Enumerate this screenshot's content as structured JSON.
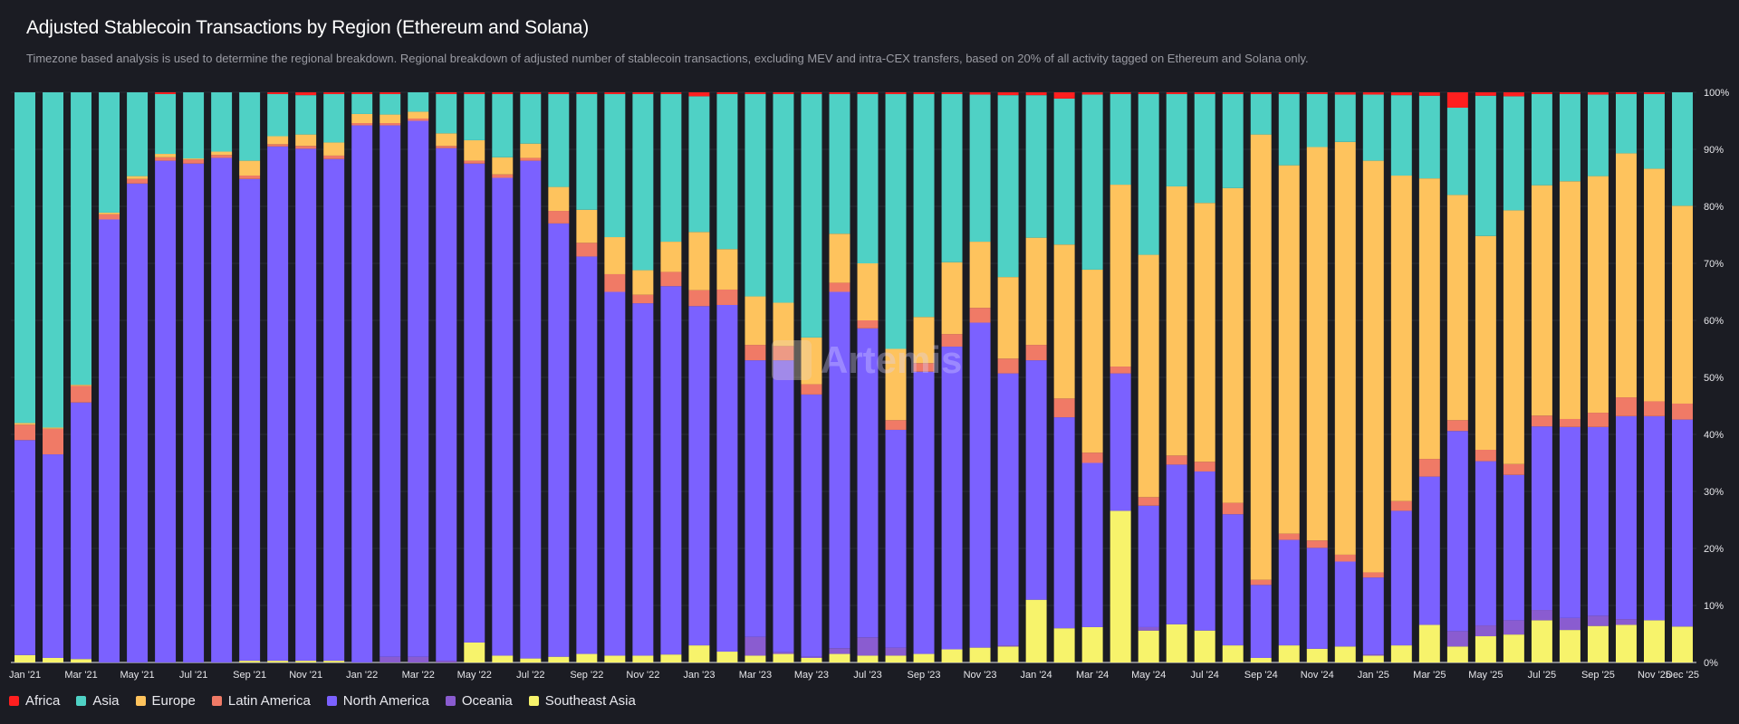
{
  "title": "Adjusted Stablecoin Transactions by Region (Ethereum and Solana)",
  "subtitle": "Timezone based analysis is used to determine the regional breakdown. Regional breakdown of adjusted number of stablecoin transactions, excluding MEV and intra-CEX transfers, based on 20% of all activity tagged on Ethereum and Solana only.",
  "watermark": "Artemis",
  "chart_data": {
    "type": "bar",
    "stacked": true,
    "normalized": true,
    "ylim": [
      0,
      100
    ],
    "y_ticks": [
      "0%",
      "10%",
      "20%",
      "30%",
      "40%",
      "50%",
      "60%",
      "70%",
      "80%",
      "90%",
      "100%"
    ],
    "y_axis_side": "right",
    "grid": true,
    "legend_position": "bottom-left",
    "categories": [
      "Jan '21",
      "Feb '21",
      "Mar '21",
      "Apr '21",
      "May '21",
      "Jun '21",
      "Jul '21",
      "Aug '21",
      "Sep '21",
      "Oct '21",
      "Nov '21",
      "Dec '21",
      "Jan '22",
      "Feb '22",
      "Mar '22",
      "Apr '22",
      "May '22",
      "Jun '22",
      "Jul '22",
      "Aug '22",
      "Sep '22",
      "Oct '22",
      "Nov '22",
      "Dec '22",
      "Jan '23",
      "Feb '23",
      "Mar '23",
      "Apr '23",
      "May '23",
      "Jun '23",
      "Jul '23",
      "Aug '23",
      "Sep '23",
      "Oct '23",
      "Nov '23",
      "Dec '23",
      "Jan '24",
      "Feb '24",
      "Mar '24",
      "Apr '24",
      "May '24",
      "Jun '24",
      "Jul '24",
      "Aug '24",
      "Sep '24",
      "Oct '24",
      "Nov '24",
      "Dec '24",
      "Jan '25",
      "Feb '25",
      "Mar '25",
      "Apr '25",
      "May '25",
      "Jun '25",
      "Jul '25",
      "Aug '25",
      "Sep '25",
      "Oct '25",
      "Nov '25",
      "Dec '25"
    ],
    "x_tick_labels": [
      "Jan '21",
      "Mar '21",
      "May '21",
      "Jul '21",
      "Sep '21",
      "Nov '21",
      "Jan '22",
      "Mar '22",
      "May '22",
      "Jul '22",
      "Sep '22",
      "Nov '22",
      "Jan '23",
      "Mar '23",
      "May '23",
      "Jul '23",
      "Sep '23",
      "Nov '23",
      "Jan '24",
      "Mar '24",
      "May '24",
      "Jul '24",
      "Sep '24",
      "Nov '24",
      "Jan '25",
      "Mar '25",
      "May '25",
      "Jul '25",
      "Sep '25",
      "Nov '25",
      "Dec '25"
    ],
    "legend": [
      "Africa",
      "Asia",
      "Europe",
      "Latin America",
      "North America",
      "Oceania",
      "Southeast Asia"
    ],
    "series": [
      {
        "name": "Southeast Asia",
        "color": "#f7f36b",
        "values": [
          1.3,
          0.8,
          0.6,
          0,
          0,
          0,
          0,
          0,
          0.3,
          0.3,
          0.3,
          0.3,
          0,
          0,
          0,
          0,
          3.5,
          1.2,
          0.7,
          1,
          1.5,
          1.2,
          1.2,
          1.4,
          3,
          1.9,
          1.2,
          1.5,
          0.8,
          1.5,
          1.2,
          1.2,
          1.5,
          2.3,
          2.6,
          2.8,
          11,
          6,
          6.2,
          26.6,
          5.6,
          6.7,
          5.6,
          3,
          0.8,
          3,
          2.4,
          2.8,
          1.2,
          3,
          6.6,
          2.8,
          4.6,
          4.9,
          7.4,
          5.7,
          6.4,
          6.6,
          7.4,
          6.3
        ]
      },
      {
        "name": "Oceania",
        "color": "#8a5cd0",
        "values": [
          0,
          0,
          0,
          0,
          0,
          0,
          0,
          0,
          0,
          0,
          0,
          0,
          0,
          1,
          1,
          0.3,
          0,
          0,
          0,
          0,
          0,
          0,
          0,
          0,
          0,
          0,
          3.3,
          0.3,
          0.2,
          1,
          3.2,
          1.4,
          0,
          0,
          0,
          0.2,
          0,
          0,
          0,
          0,
          0.6,
          0,
          0,
          0,
          0,
          0,
          0,
          0,
          0.2,
          0,
          0,
          2.7,
          1.9,
          2.5,
          1.8,
          2.1,
          1.8,
          1,
          0,
          0
        ]
      },
      {
        "name": "North America",
        "color": "#7b61ff",
        "values": [
          37.7,
          35.7,
          45,
          77.7,
          84,
          88,
          87.5,
          88.5,
          84.5,
          90.2,
          89.8,
          88,
          94.2,
          93.2,
          94,
          89.9,
          84,
          83.8,
          87.3,
          76,
          69.7,
          63.8,
          61.8,
          64.6,
          59.5,
          60.8,
          48.5,
          51.2,
          46,
          62.5,
          54.2,
          38.2,
          49.5,
          53.1,
          57,
          47.7,
          42,
          37,
          28.8,
          24.1,
          21.3,
          28,
          27.9,
          23,
          12.8,
          18.5,
          17.7,
          14.9,
          13.5,
          23.6,
          26,
          35.1,
          28.8,
          25.5,
          32.2,
          33.5,
          33.1,
          35.6,
          35.8,
          36.3
        ]
      },
      {
        "name": "Latin America",
        "color": "#f07a66",
        "values": [
          2.7,
          4.5,
          2.9,
          0.9,
          0.8,
          0.6,
          0.7,
          0.5,
          0.6,
          0.4,
          0.5,
          0.6,
          0.4,
          0.4,
          0.4,
          0.4,
          0.5,
          0.6,
          0.5,
          2.2,
          2.4,
          3.1,
          1.5,
          2.5,
          2.8,
          2.7,
          2.7,
          2.5,
          1.8,
          1.6,
          1.4,
          1.7,
          1.5,
          2.2,
          2.6,
          2.6,
          2.7,
          3.3,
          1.8,
          1.2,
          1.5,
          1.6,
          1.7,
          2,
          0.9,
          1.1,
          1.3,
          1.2,
          0.9,
          1.7,
          3.1,
          1.9,
          2,
          1.9,
          1.9,
          1.4,
          2.5,
          3.3,
          2.6,
          2.8
        ]
      },
      {
        "name": "Europe",
        "color": "#fec35d",
        "values": [
          0.3,
          0.2,
          0.2,
          0.3,
          0.5,
          0.6,
          0.2,
          0.6,
          2.6,
          1.4,
          2,
          2.3,
          1.6,
          1.5,
          1.2,
          2.2,
          3.6,
          3,
          2.5,
          4.2,
          5.8,
          6.5,
          4.3,
          5.3,
          10.2,
          7.1,
          8.5,
          7.6,
          8.2,
          8.6,
          10,
          12.5,
          8.1,
          12.6,
          11.6,
          14.3,
          18.8,
          27,
          32.1,
          31.9,
          42.5,
          47.2,
          45.4,
          55.2,
          78.1,
          64.6,
          69,
          72.4,
          72.2,
          57.1,
          49.2,
          39.5,
          37.5,
          44.5,
          40.4,
          41.7,
          41.5,
          42.8,
          40.8,
          34.7
        ]
      },
      {
        "name": "Asia",
        "color": "#4fd1c5",
        "values": [
          58,
          58.8,
          51.3,
          21.1,
          14.7,
          10.5,
          11.6,
          10.4,
          12,
          7.4,
          6.9,
          8.5,
          3.5,
          3.6,
          3.4,
          6.9,
          8.1,
          11.1,
          8.7,
          16.3,
          20.3,
          25.1,
          30.9,
          25.9,
          23.8,
          27.2,
          35.5,
          36.6,
          42.7,
          24.5,
          29.7,
          44.7,
          39.1,
          29.5,
          25.8,
          31.9,
          25,
          25.6,
          30.7,
          15.9,
          28.2,
          16.2,
          19.1,
          16.5,
          7.1,
          12.5,
          9.3,
          8.3,
          11.6,
          14.1,
          14.5,
          15.3,
          24.6,
          20,
          16,
          15.3,
          14.3,
          10.4,
          13.1,
          19.9
        ]
      },
      {
        "name": "Africa",
        "color": "#ff1f1f",
        "values": [
          0,
          0,
          0,
          0,
          0,
          0.3,
          0,
          0,
          0,
          0.3,
          0.5,
          0.3,
          0.3,
          0.3,
          0,
          0.3,
          0.3,
          0.3,
          0.3,
          0.3,
          0.3,
          0.3,
          0.3,
          0.3,
          0.7,
          0.3,
          0.3,
          0.3,
          0.3,
          0.3,
          0.3,
          0.3,
          0.3,
          0.3,
          0.4,
          0.5,
          0.5,
          1.1,
          0.4,
          0.3,
          0.3,
          0.3,
          0.3,
          0.3,
          0.3,
          0.3,
          0.3,
          0.4,
          0.4,
          0.5,
          0.6,
          2.7,
          0.6,
          0.7,
          0.3,
          0.3,
          0.4,
          0.3,
          0.3,
          0
        ]
      }
    ]
  }
}
